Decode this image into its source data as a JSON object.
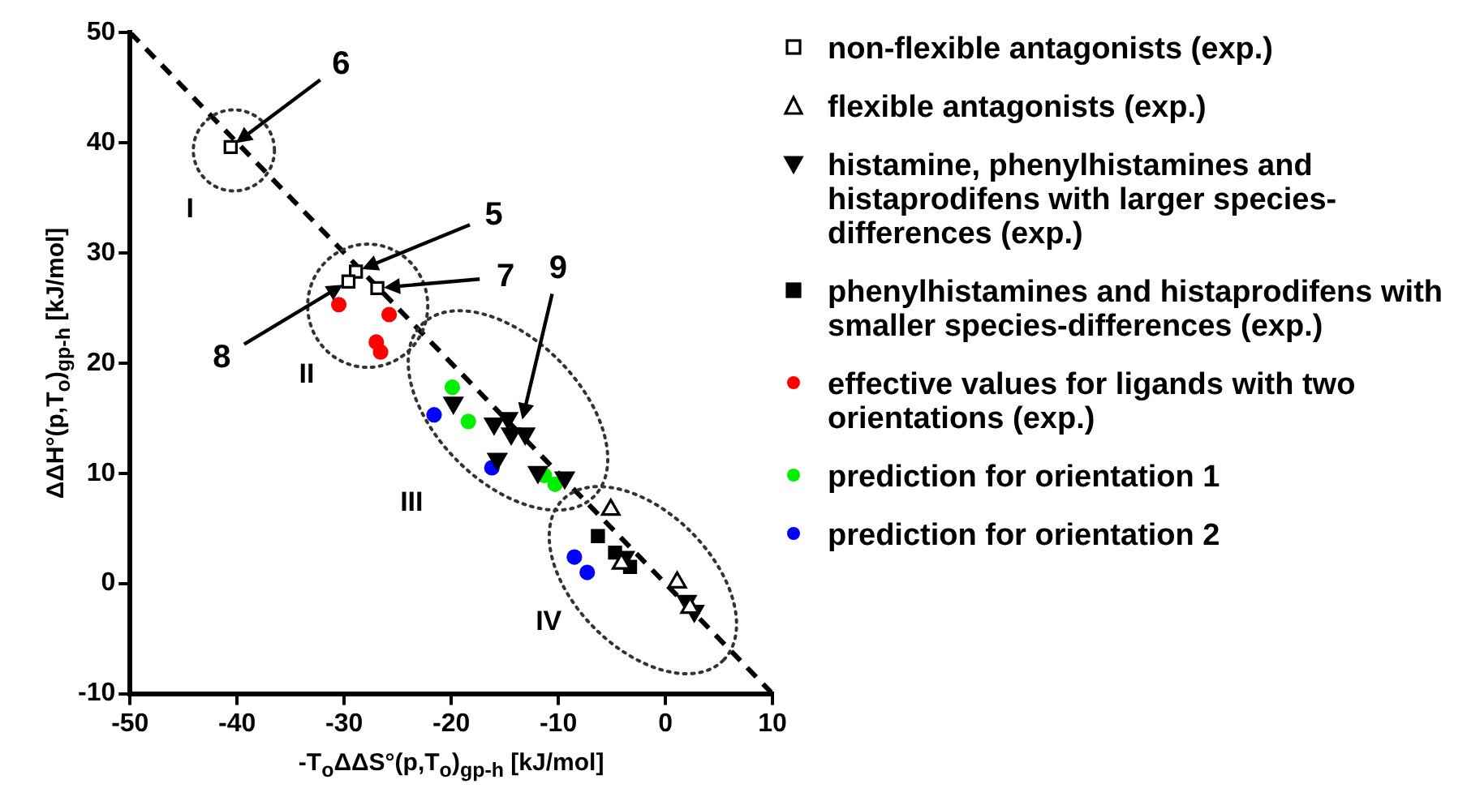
{
  "chart_data": {
    "type": "scatter",
    "xlabel": "-T$_{o}$ΔΔS°(p,T$_{o}$)$_{gp-h}$ [kJ/mol]",
    "ylabel": "ΔΔH°(p,T$_{o}$)$_{gp-h}$ [kJ/mol]",
    "xlim": [
      -50,
      10
    ],
    "xticks": [
      -50,
      -40,
      -30,
      -20,
      -10,
      0,
      10
    ],
    "ylim": [
      -10,
      50
    ],
    "yticks": [
      -10,
      0,
      10,
      20,
      30,
      40,
      50
    ],
    "grid": false,
    "legend": "right",
    "series": [
      {
        "name": "non-flexible antagonists (exp.)",
        "color": "#000000",
        "marker": "square-open",
        "x": [
          -40.6,
          -28.9,
          -29.6,
          -26.9
        ],
        "values": [
          39.6,
          28.3,
          27.4,
          26.8
        ]
      },
      {
        "name": "flexible antagonists (exp.)",
        "color": "#000000",
        "marker": "triangle-open",
        "x": [
          -5.1,
          -4.1,
          1.1,
          2.3
        ],
        "values": [
          6.7,
          1.8,
          0.1,
          -2.2
        ]
      },
      {
        "name": "histamine, phenylhistamines and histaprodifens with larger species-differences (exp.)",
        "color": "#000000",
        "marker": "triangle-down",
        "x": [
          -19.8,
          -16.0,
          -14.7,
          -14.4,
          -13.1,
          -15.7,
          -11.9,
          -9.4,
          -3.8,
          2.0,
          2.7
        ],
        "values": [
          16.4,
          14.5,
          15.0,
          13.6,
          13.6,
          11.3,
          10.1,
          9.6,
          2.4,
          -1.6,
          -2.5
        ]
      },
      {
        "name": "phenylhistamines and histaprodifens with smaller species-differences (exp.)",
        "color": "#000000",
        "marker": "square",
        "x": [
          -6.3,
          -4.7,
          -3.3
        ],
        "values": [
          4.3,
          2.8,
          1.5
        ]
      },
      {
        "name": "effective values for ligands with two orientations (exp.)",
        "color": "#ff0000",
        "marker": "circle",
        "x": [
          -30.5,
          -25.8,
          -27.0,
          -26.6
        ],
        "values": [
          25.3,
          24.4,
          21.9,
          21.0
        ]
      },
      {
        "name": "prediction for orientation 1",
        "color": "#00ee00",
        "marker": "circle",
        "x": [
          -19.9,
          -18.4,
          -11.3,
          -10.3
        ],
        "values": [
          17.8,
          14.7,
          9.8,
          9.0
        ]
      },
      {
        "name": "prediction for orientation 2",
        "color": "#0000ff",
        "marker": "circle",
        "x": [
          -21.6,
          -16.2,
          -8.5,
          -7.3
        ],
        "values": [
          15.3,
          10.5,
          2.4,
          1.0
        ]
      },
      {
        "type": "line",
        "color": "#000000",
        "line_style": "dashed",
        "marker": "none",
        "x": [
          -50,
          10
        ],
        "values": [
          50,
          -10
        ]
      }
    ],
    "annotations": [
      "6",
      "5",
      "7",
      "8",
      "9",
      "I",
      "II",
      "III",
      "IV"
    ]
  }
}
